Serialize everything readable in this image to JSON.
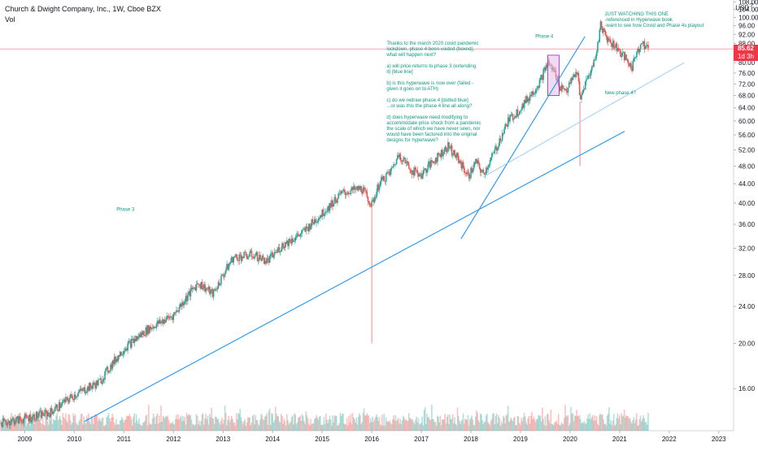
{
  "header": {
    "title": "Church & Dwight Company, Inc., 1W, Cboe BZX",
    "volume_label": "Vol"
  },
  "axis": {
    "currency": "USD",
    "last_price": "85.62",
    "countdown": "1d 3h",
    "scale_corner": "7"
  },
  "colors": {
    "up": "#26a69a",
    "down": "#ef5350",
    "trend": "#2196f3",
    "trend_light": "#90caf9",
    "note": "#089981",
    "box": "#e1bee7",
    "box_border": "#9c27b0",
    "price_line": "#f23645"
  },
  "annotations": {
    "phase3": "Phase 3",
    "phase4": "Phase 4",
    "new_phase4": "New phase 4?",
    "watching": [
      "JUST WATCHING THIS ONE",
      "-referenced in Hyperwave book",
      "-want to see how Covid and Phase 4s playout"
    ],
    "commentary": [
      "Thanks to the march 2020 covid pandemic",
      "lockdown, phase 4 been voided (boxed),",
      "what will happen next?",
      "",
      "a) will price returns to phase 3 (extending",
      "it) [blue line]",
      "",
      "b) is this hyperwave is now over (failed -",
      "given it goes on to ATH)",
      "",
      "c) do we redraw phase 4 [dotted blue]",
      "...or was this the phase 4 line all along?",
      "",
      "d) does hyperwave need modifying to",
      "accommodate price shock from a pandemic",
      "the scale of which we have never seen, nor",
      "would have been factored into the original",
      "designs for hyperwave?"
    ]
  },
  "chart_data": {
    "type": "candlestick",
    "title": "Church & Dwight Company, Inc., 1W, Cboe BZX",
    "x_ticks": [
      "2009",
      "2010",
      "2011",
      "2012",
      "2013",
      "2014",
      "2015",
      "2016",
      "2017",
      "2018",
      "2019",
      "2020",
      "2021",
      "2022",
      "2023"
    ],
    "y_ticks": [
      16,
      20,
      24,
      28,
      32,
      36,
      40,
      44,
      48,
      52,
      56,
      60,
      64,
      68,
      72,
      76,
      80,
      84,
      88,
      92,
      96,
      100,
      104,
      108
    ],
    "ylim": [
      13,
      109
    ],
    "xlim": [
      2008.5,
      2023.3
    ],
    "y_scale": "log",
    "last_price": 85.62,
    "price_path": [
      [
        2008.5,
        13.5
      ],
      [
        2009.0,
        13.8
      ],
      [
        2009.5,
        14.2
      ],
      [
        2010.0,
        15.5
      ],
      [
        2010.5,
        16.5
      ],
      [
        2011.0,
        19.5
      ],
      [
        2011.5,
        21.5
      ],
      [
        2012.0,
        23.0
      ],
      [
        2012.5,
        27.0
      ],
      [
        2012.8,
        25.5
      ],
      [
        2013.2,
        30.5
      ],
      [
        2013.6,
        31.0
      ],
      [
        2013.9,
        30.0
      ],
      [
        2014.2,
        32.5
      ],
      [
        2014.6,
        34.5
      ],
      [
        2015.0,
        38.0
      ],
      [
        2015.4,
        42.0
      ],
      [
        2015.8,
        43.0
      ],
      [
        2016.0,
        39.5
      ],
      [
        2016.15,
        44.0
      ],
      [
        2016.4,
        47.0
      ],
      [
        2016.55,
        51.0
      ],
      [
        2016.8,
        47.0
      ],
      [
        2017.0,
        46.0
      ],
      [
        2017.3,
        50.0
      ],
      [
        2017.55,
        53.0
      ],
      [
        2017.8,
        48.5
      ],
      [
        2017.95,
        45.5
      ],
      [
        2018.1,
        49.0
      ],
      [
        2018.25,
        46.0
      ],
      [
        2018.5,
        52.0
      ],
      [
        2018.75,
        60.0
      ],
      [
        2018.95,
        63.0
      ],
      [
        2019.2,
        68.0
      ],
      [
        2019.4,
        73.0
      ],
      [
        2019.55,
        80.0
      ],
      [
        2019.7,
        76.0
      ],
      [
        2019.8,
        71.0
      ],
      [
        2019.95,
        70.0
      ],
      [
        2020.05,
        74.0
      ],
      [
        2020.15,
        77.0
      ],
      [
        2020.2,
        66.0
      ],
      [
        2020.3,
        72.0
      ],
      [
        2020.45,
        78.0
      ],
      [
        2020.55,
        86.0
      ],
      [
        2020.62,
        97.0
      ],
      [
        2020.72,
        91.0
      ],
      [
        2020.85,
        88.0
      ],
      [
        2020.95,
        86.0
      ],
      [
        2021.1,
        82.0
      ],
      [
        2021.25,
        78.0
      ],
      [
        2021.35,
        85.0
      ],
      [
        2021.45,
        88.0
      ],
      [
        2021.55,
        86.0
      ],
      [
        2021.58,
        85.62
      ]
    ],
    "spikes": [
      [
        2016.0,
        20.0
      ],
      [
        2020.2,
        48.0
      ]
    ],
    "trendlines": [
      {
        "from": [
          2010.2,
          13.6
        ],
        "to": [
          2021.1,
          57.0
        ],
        "style": "solid"
      },
      {
        "from": [
          2017.8,
          33.5
        ],
        "to": [
          2020.3,
          91.0
        ],
        "style": "solid"
      },
      {
        "from": [
          2018.25,
          45.5
        ],
        "to": [
          2022.3,
          80.0
        ],
        "style": "light"
      }
    ],
    "box": {
      "x": [
        2019.55,
        2019.78
      ],
      "y": [
        68.0,
        83.0
      ]
    },
    "volume_scale": "relative"
  }
}
